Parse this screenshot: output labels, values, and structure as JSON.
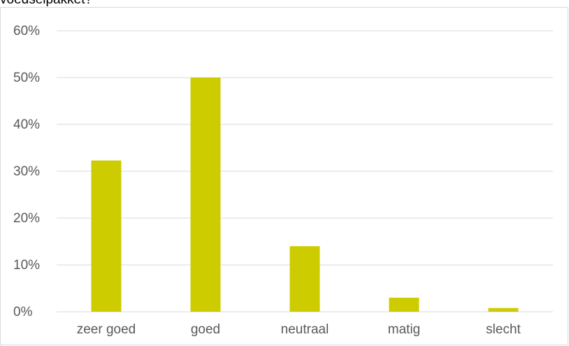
{
  "page": {
    "clipped_title": "voedselpakket?"
  },
  "chart_data": {
    "type": "bar",
    "categories": [
      "zeer goed",
      "goed",
      "neutraal",
      "matig",
      "slecht"
    ],
    "values": [
      32.3,
      50.0,
      14.0,
      3.0,
      0.8
    ],
    "value_unit": "%",
    "title": "",
    "xlabel": "",
    "ylabel": "",
    "ylim": [
      0,
      60
    ],
    "yticks": [
      0,
      10,
      20,
      30,
      40,
      50,
      60
    ],
    "ytick_labels": [
      "0%",
      "10%",
      "20%",
      "30%",
      "40%",
      "50%",
      "60%"
    ],
    "grid": true,
    "legend": "none",
    "colors": {
      "bar": "#cccc00",
      "grid": "#d9d9d9",
      "axis_text": "#595959",
      "border": "#d9d9d9"
    }
  }
}
